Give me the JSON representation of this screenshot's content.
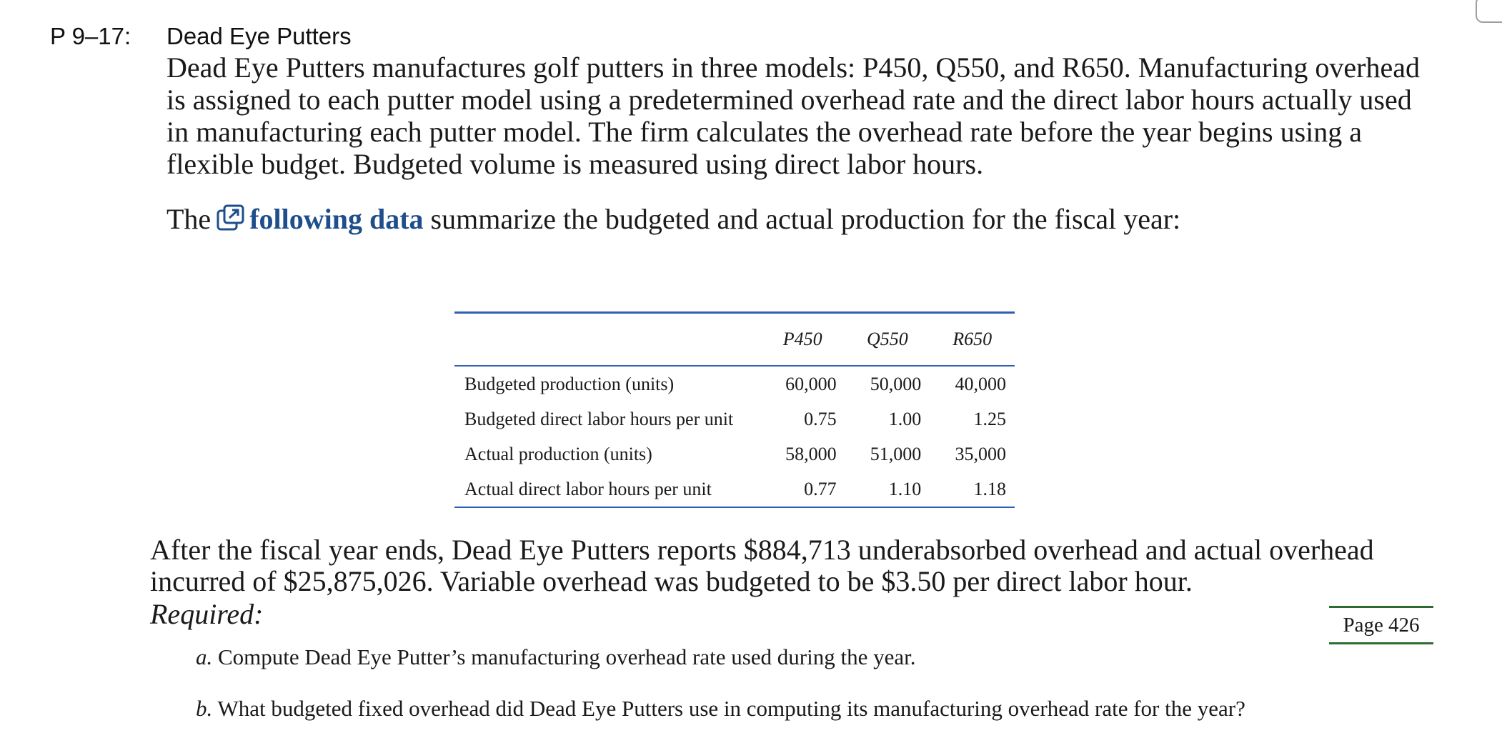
{
  "problem": {
    "number": "P 9–17:",
    "title": "Dead Eye Putters",
    "intro": "Dead Eye Putters manufactures golf putters in three models: P450, Q550, and R650. Manufacturing overhead is assigned to each putter model using a predetermined overhead rate and the direct labor hours actually used in manufacturing each putter model. The firm calculates the overhead rate before the year begins using a flexible budget. Budgeted volume is measured using direct labor hours.",
    "data_line": {
      "before": "The",
      "link": "following data",
      "after": "summarize the budgeted and actual production for the fiscal year:",
      "icon": "external-link-icon"
    }
  },
  "table": {
    "headers": [
      "",
      "P450",
      "Q550",
      "R650"
    ],
    "rows": [
      {
        "label": "Budgeted production (units)",
        "values": [
          "60,000",
          "50,000",
          "40,000"
        ]
      },
      {
        "label": "Budgeted direct labor hours per unit",
        "values": [
          "0.75",
          "1.00",
          "1.25"
        ]
      },
      {
        "label": "Actual production (units)",
        "values": [
          "58,000",
          "51,000",
          "35,000"
        ]
      },
      {
        "label": "Actual direct labor hours per unit",
        "values": [
          "0.77",
          "1.10",
          "1.18"
        ]
      }
    ]
  },
  "after_text": "After the fiscal year ends, Dead Eye Putters reports $884,713 underabsorbed overhead and actual overhead incurred of $25,875,026. Variable overhead was budgeted to be $3.50 per direct labor hour.",
  "required_label": "Required:",
  "page_marker": "Page 426",
  "requirements": [
    {
      "letter": "a.",
      "text": "Compute Dead Eye Putter’s manufacturing overhead rate used during the year."
    },
    {
      "letter": "b.",
      "text": "What budgeted fixed overhead did Dead Eye Putters use in computing its manufacturing overhead rate for the year?"
    }
  ],
  "colors": {
    "table_rule": "#2f5fb3",
    "link": "#1f4e8c",
    "page_marker_rule": "#2e6b30"
  }
}
